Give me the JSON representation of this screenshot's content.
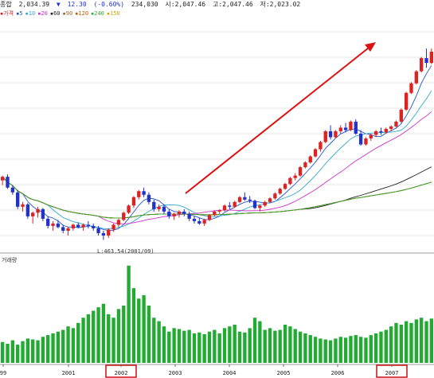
{
  "header": {
    "name": "종합",
    "price": "2,034.39",
    "change_arrow": "▼",
    "change": "12.30",
    "change_pct": "(-0.60%)",
    "volume": "234,030",
    "open": "시:2,047.46",
    "high": "고:2,047.46",
    "low": "저:2,023.02"
  },
  "legend": [
    {
      "label": "가격",
      "color": "#cc2222"
    },
    {
      "label": "5",
      "color": "#2255cc"
    },
    {
      "label": "10",
      "color": "#33aacc"
    },
    {
      "label": "20",
      "color": "#cc33cc"
    },
    {
      "label": "60",
      "color": "#222222"
    },
    {
      "label": "90",
      "color": "#996633"
    },
    {
      "label": "120",
      "color": "#cc5500"
    },
    {
      "label": "240",
      "color": "#33aa33"
    },
    {
      "label": "150",
      "color": "#ccaa00"
    }
  ],
  "annotation_low": "L:463.54(2001/09)",
  "volume_label": "거래량",
  "colors": {
    "up": "#dd2222",
    "down": "#2233cc",
    "volume": "#22aa33",
    "arrow": "#dd1111",
    "highlight_box": "#cc1111"
  },
  "chart_data": {
    "type": "candlestick",
    "x_labels": [
      "99",
      "2001",
      "2002",
      "2003",
      "2004",
      "2005",
      "2006",
      "2007"
    ],
    "highlighted_x_labels": [
      "2002",
      "2007"
    ],
    "price_min_printed": "463.54",
    "candles": [
      [
        960,
        1000,
        920,
        990
      ],
      [
        990,
        1010,
        890,
        900
      ],
      [
        900,
        920,
        840,
        860
      ],
      [
        860,
        880,
        720,
        740
      ],
      [
        740,
        780,
        700,
        760
      ],
      [
        760,
        770,
        640,
        660
      ],
      [
        660,
        700,
        600,
        690
      ],
      [
        690,
        740,
        650,
        720
      ],
      [
        720,
        730,
        620,
        640
      ],
      [
        640,
        660,
        560,
        580
      ],
      [
        580,
        620,
        540,
        600
      ],
      [
        600,
        630,
        560,
        570
      ],
      [
        570,
        590,
        520,
        540
      ],
      [
        540,
        570,
        500,
        560
      ],
      [
        560,
        600,
        540,
        590
      ],
      [
        590,
        610,
        560,
        570
      ],
      [
        570,
        600,
        540,
        590
      ],
      [
        590,
        620,
        560,
        580
      ],
      [
        580,
        600,
        540,
        560
      ],
      [
        560,
        580,
        500,
        520
      ],
      [
        520,
        540,
        463,
        500
      ],
      [
        500,
        560,
        480,
        550
      ],
      [
        550,
        600,
        530,
        590
      ],
      [
        590,
        640,
        570,
        630
      ],
      [
        630,
        700,
        620,
        690
      ],
      [
        690,
        760,
        680,
        750
      ],
      [
        750,
        830,
        730,
        820
      ],
      [
        820,
        880,
        800,
        870
      ],
      [
        870,
        900,
        820,
        840
      ],
      [
        840,
        860,
        760,
        780
      ],
      [
        780,
        800,
        700,
        720
      ],
      [
        720,
        760,
        700,
        740
      ],
      [
        740,
        760,
        680,
        700
      ],
      [
        700,
        720,
        640,
        660
      ],
      [
        660,
        690,
        630,
        680
      ],
      [
        680,
        710,
        650,
        700
      ],
      [
        700,
        720,
        660,
        680
      ],
      [
        680,
        700,
        620,
        640
      ],
      [
        640,
        660,
        600,
        620
      ],
      [
        620,
        650,
        590,
        600
      ],
      [
        600,
        640,
        580,
        630
      ],
      [
        630,
        680,
        620,
        670
      ],
      [
        670,
        710,
        660,
        700
      ],
      [
        700,
        720,
        680,
        710
      ],
      [
        710,
        760,
        700,
        750
      ],
      [
        750,
        780,
        720,
        740
      ],
      [
        740,
        790,
        730,
        780
      ],
      [
        780,
        830,
        770,
        820
      ],
      [
        820,
        860,
        790,
        800
      ],
      [
        800,
        830,
        770,
        790
      ],
      [
        790,
        800,
        720,
        730
      ],
      [
        730,
        760,
        700,
        750
      ],
      [
        750,
        790,
        740,
        780
      ],
      [
        780,
        820,
        770,
        810
      ],
      [
        810,
        860,
        800,
        850
      ],
      [
        850,
        900,
        840,
        890
      ],
      [
        890,
        940,
        880,
        930
      ],
      [
        930,
        990,
        920,
        980
      ],
      [
        980,
        1020,
        960,
        1000
      ],
      [
        1000,
        1080,
        990,
        1070
      ],
      [
        1070,
        1120,
        1060,
        1110
      ],
      [
        1110,
        1170,
        1100,
        1160
      ],
      [
        1160,
        1230,
        1150,
        1220
      ],
      [
        1220,
        1290,
        1200,
        1280
      ],
      [
        1280,
        1380,
        1270,
        1370
      ],
      [
        1370,
        1420,
        1300,
        1320
      ],
      [
        1320,
        1380,
        1310,
        1370
      ],
      [
        1370,
        1420,
        1350,
        1400
      ],
      [
        1400,
        1440,
        1360,
        1380
      ],
      [
        1380,
        1460,
        1370,
        1450
      ],
      [
        1450,
        1470,
        1340,
        1350
      ],
      [
        1350,
        1380,
        1250,
        1260
      ],
      [
        1260,
        1320,
        1250,
        1310
      ],
      [
        1310,
        1350,
        1290,
        1340
      ],
      [
        1340,
        1380,
        1320,
        1370
      ],
      [
        1370,
        1400,
        1340,
        1360
      ],
      [
        1360,
        1400,
        1350,
        1390
      ],
      [
        1390,
        1420,
        1370,
        1410
      ],
      [
        1410,
        1460,
        1400,
        1450
      ],
      [
        1450,
        1560,
        1440,
        1550
      ],
      [
        1550,
        1700,
        1540,
        1690
      ],
      [
        1690,
        1780,
        1680,
        1770
      ],
      [
        1770,
        1880,
        1760,
        1870
      ],
      [
        1870,
        1990,
        1860,
        1980
      ],
      [
        1980,
        2060,
        1900,
        1940
      ],
      [
        1940,
        2060,
        1930,
        2034
      ]
    ],
    "volume": [
      120,
      110,
      130,
      105,
      125,
      140,
      135,
      130,
      150,
      160,
      170,
      180,
      190,
      210,
      200,
      230,
      260,
      280,
      300,
      320,
      340,
      280,
      260,
      310,
      330,
      560,
      430,
      370,
      390,
      330,
      260,
      240,
      210,
      180,
      200,
      195,
      185,
      190,
      170,
      175,
      165,
      180,
      190,
      170,
      200,
      210,
      220,
      180,
      175,
      200,
      260,
      240,
      190,
      200,
      185,
      190,
      220,
      210,
      195,
      180,
      170,
      160,
      150,
      140,
      135,
      130,
      140,
      150,
      145,
      155,
      160,
      150,
      145,
      160,
      170,
      180,
      190,
      210,
      230,
      220,
      240,
      230,
      250,
      260,
      240,
      255
    ]
  }
}
